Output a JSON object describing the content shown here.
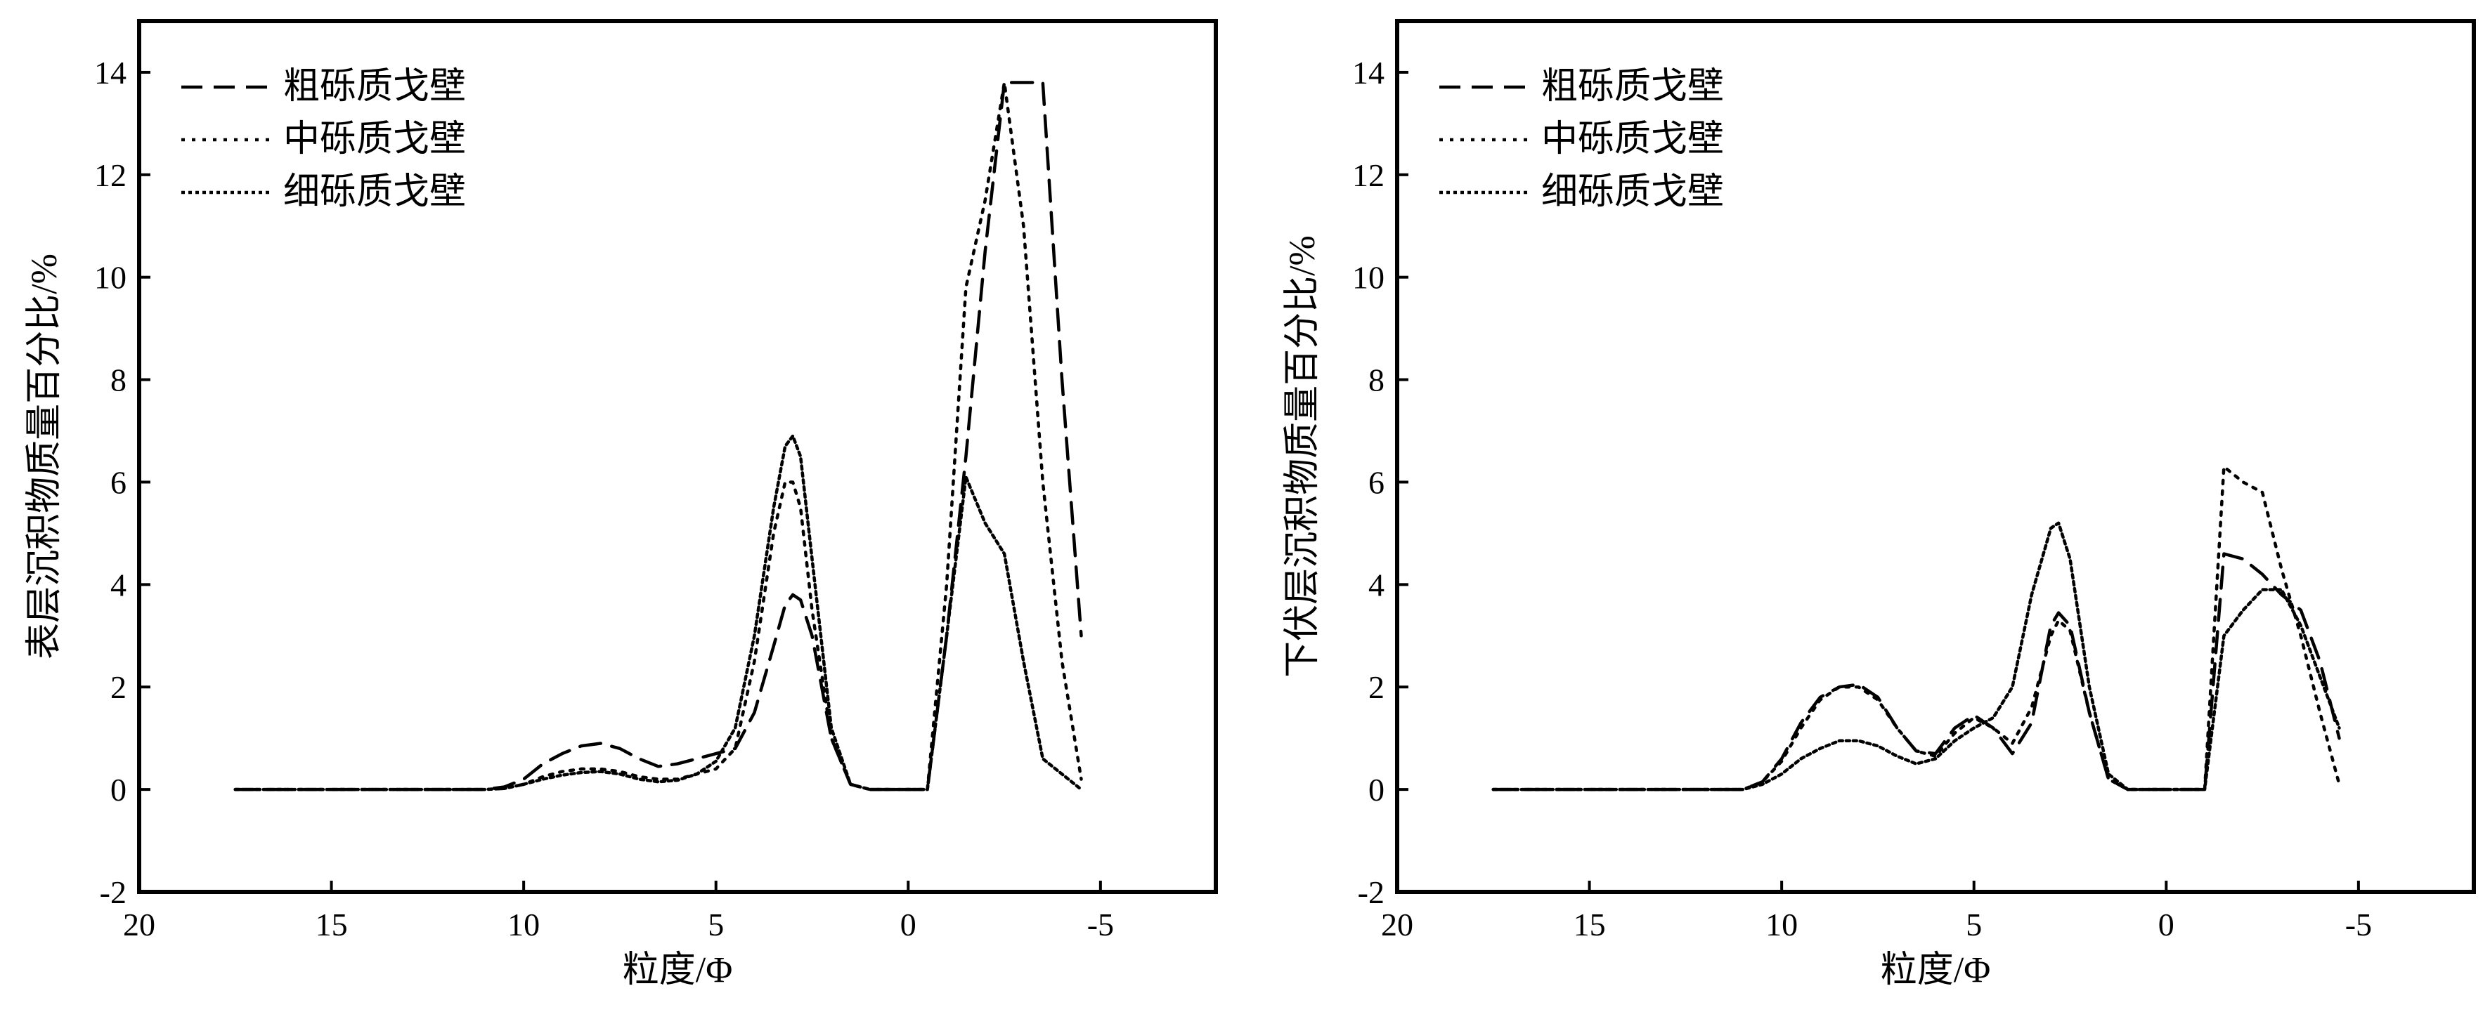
{
  "chart_data": [
    {
      "type": "line",
      "title": "",
      "xlabel": "粒度/Φ",
      "ylabel": "表层沉积物质量百分比/%",
      "xlim": [
        20,
        -8
      ],
      "ylim": [
        -2,
        15
      ],
      "x_ticks": [
        20,
        15,
        10,
        5,
        0,
        -5
      ],
      "x_tick_labels": [
        "20",
        "15",
        "10",
        "5",
        "0",
        "-5"
      ],
      "y_ticks": [
        -2,
        0,
        2,
        4,
        6,
        8,
        10,
        12,
        14
      ],
      "y_tick_labels": [
        "-2",
        "0",
        "2",
        "4",
        "6",
        "8",
        "10",
        "12",
        "14"
      ],
      "grid": false,
      "legend_position": "top-left",
      "series": [
        {
          "name": "粗砾质戈壁",
          "dash": "dashed",
          "x": [
            17.5,
            15,
            12,
            11,
            10.5,
            10,
            9.5,
            9,
            8.5,
            8,
            7.5,
            7,
            6.5,
            6,
            5.5,
            5,
            4.5,
            4,
            3.5,
            3.2,
            3,
            2.8,
            2.5,
            2,
            1.5,
            1,
            0.5,
            0,
            -0.5,
            -1,
            -1.5,
            -2,
            -2.5,
            -3,
            -3.5,
            -4,
            -4.5
          ],
          "y": [
            0,
            0,
            0,
            0,
            0.05,
            0.2,
            0.5,
            0.7,
            0.85,
            0.9,
            0.8,
            0.6,
            0.45,
            0.5,
            0.6,
            0.7,
            0.8,
            1.5,
            2.8,
            3.6,
            3.8,
            3.7,
            3.0,
            1.0,
            0.1,
            0,
            0,
            0,
            0,
            3,
            6.5,
            10.5,
            13.8,
            13.8,
            13.8,
            8,
            3
          ]
        },
        {
          "name": "中砾质戈壁",
          "dash": "dotted-sparse",
          "x": [
            17.5,
            15,
            12,
            11,
            10.5,
            10,
            9.5,
            9,
            8.5,
            8,
            7.5,
            7,
            6.5,
            6,
            5.5,
            5,
            4.5,
            4,
            3.5,
            3.2,
            3,
            2.8,
            2.5,
            2,
            1.5,
            1,
            0.5,
            0,
            -0.5,
            -1,
            -1.5,
            -2,
            -2.5,
            -3,
            -3.5,
            -4,
            -4.5
          ],
          "y": [
            0,
            0,
            0,
            0,
            0.02,
            0.1,
            0.25,
            0.35,
            0.4,
            0.4,
            0.35,
            0.25,
            0.2,
            0.2,
            0.3,
            0.4,
            0.8,
            2.5,
            5.0,
            6.0,
            6.0,
            5.5,
            3.5,
            1.0,
            0.1,
            0,
            0,
            0,
            0,
            4,
            9.8,
            11.5,
            13.8,
            11,
            6,
            2.5,
            0.2
          ]
        },
        {
          "name": "细砾质戈壁",
          "dash": "dotted-dense",
          "x": [
            17.5,
            15,
            12,
            11,
            10.5,
            10,
            9.5,
            9,
            8.5,
            8,
            7.5,
            7,
            6.5,
            6,
            5.5,
            5,
            4.5,
            4,
            3.5,
            3.2,
            3,
            2.8,
            2.5,
            2,
            1.5,
            1,
            0.5,
            0,
            -0.5,
            -1,
            -1.5,
            -2,
            -2.5,
            -3,
            -3.5,
            -4,
            -4.5
          ],
          "y": [
            0,
            0,
            0,
            0,
            0.02,
            0.1,
            0.2,
            0.28,
            0.33,
            0.35,
            0.3,
            0.2,
            0.15,
            0.18,
            0.3,
            0.55,
            1.2,
            3.0,
            5.5,
            6.7,
            6.9,
            6.5,
            4.5,
            1.2,
            0.1,
            0,
            0,
            0,
            0,
            3,
            6.1,
            5.2,
            4.6,
            2.5,
            0.6,
            0.3,
            0
          ]
        }
      ]
    },
    {
      "type": "line",
      "title": "",
      "xlabel": "粒度/Φ",
      "ylabel": "下伏层沉积物质量百分比/%",
      "xlim": [
        20,
        -8
      ],
      "ylim": [
        -2,
        15
      ],
      "x_ticks": [
        20,
        15,
        10,
        5,
        0,
        -5
      ],
      "x_tick_labels": [
        "20",
        "15",
        "10",
        "5",
        "0",
        "-5"
      ],
      "y_ticks": [
        -2,
        0,
        2,
        4,
        6,
        8,
        10,
        12,
        14
      ],
      "y_tick_labels": [
        "-2",
        "0",
        "2",
        "4",
        "6",
        "8",
        "10",
        "12",
        "14"
      ],
      "grid": false,
      "legend_position": "top-left",
      "series": [
        {
          "name": "粗砾质戈壁",
          "dash": "dashed",
          "x": [
            17.5,
            15,
            12,
            11,
            10.5,
            10,
            9.5,
            9,
            8.5,
            8,
            7.5,
            7,
            6.5,
            6,
            5.5,
            5,
            4.5,
            4,
            3.5,
            3,
            2.8,
            2.5,
            2,
            1.5,
            1,
            0.5,
            0,
            -0.5,
            -1,
            -1.5,
            -2,
            -2.5,
            -3,
            -3.5,
            -4,
            -4.5
          ],
          "y": [
            0,
            0,
            0,
            0,
            0.15,
            0.6,
            1.3,
            1.8,
            2.0,
            2.05,
            1.8,
            1.2,
            0.75,
            0.7,
            1.2,
            1.45,
            1.2,
            0.7,
            1.3,
            3.2,
            3.45,
            3.2,
            1.5,
            0.2,
            0,
            0,
            0,
            0,
            0,
            4.6,
            4.5,
            4.2,
            3.8,
            3.5,
            2.5,
            1.0
          ]
        },
        {
          "name": "中砾质戈壁",
          "dash": "dotted-sparse",
          "x": [
            17.5,
            15,
            12,
            11,
            10.5,
            10,
            9.5,
            9,
            8.5,
            8,
            7.5,
            7,
            6.5,
            6,
            5.5,
            5,
            4.5,
            4,
            3.5,
            3,
            2.8,
            2.5,
            2,
            1.5,
            1,
            0.5,
            0,
            -0.5,
            -1,
            -1.5,
            -2,
            -2.5,
            -3,
            -3.5,
            -4,
            -4.5
          ],
          "y": [
            0,
            0,
            0,
            0,
            0.15,
            0.55,
            1.2,
            1.75,
            2.0,
            2.0,
            1.75,
            1.2,
            0.75,
            0.65,
            1.1,
            1.4,
            1.2,
            0.9,
            1.6,
            3.0,
            3.3,
            3.1,
            1.5,
            0.2,
            0,
            0,
            0,
            0,
            0,
            6.3,
            6.0,
            5.8,
            4.3,
            3.0,
            1.5,
            0.1
          ]
        },
        {
          "name": "细砾质戈壁",
          "dash": "dotted-dense",
          "x": [
            17.5,
            15,
            12,
            11,
            10.5,
            10,
            9.5,
            9,
            8.5,
            8,
            7.5,
            7,
            6.5,
            6,
            5.5,
            5,
            4.5,
            4,
            3.5,
            3,
            2.8,
            2.5,
            2,
            1.5,
            1,
            0.5,
            0,
            -0.5,
            -1,
            -1.5,
            -2,
            -2.5,
            -3,
            -3.5,
            -4,
            -4.5
          ],
          "y": [
            0,
            0,
            0,
            0,
            0.1,
            0.3,
            0.6,
            0.8,
            0.95,
            0.95,
            0.85,
            0.65,
            0.5,
            0.6,
            0.95,
            1.2,
            1.4,
            2.0,
            3.8,
            5.1,
            5.2,
            4.5,
            2.0,
            0.3,
            0,
            0,
            0,
            0,
            0,
            3.0,
            3.5,
            3.9,
            3.9,
            3.2,
            2.2,
            1.2
          ]
        }
      ]
    }
  ]
}
